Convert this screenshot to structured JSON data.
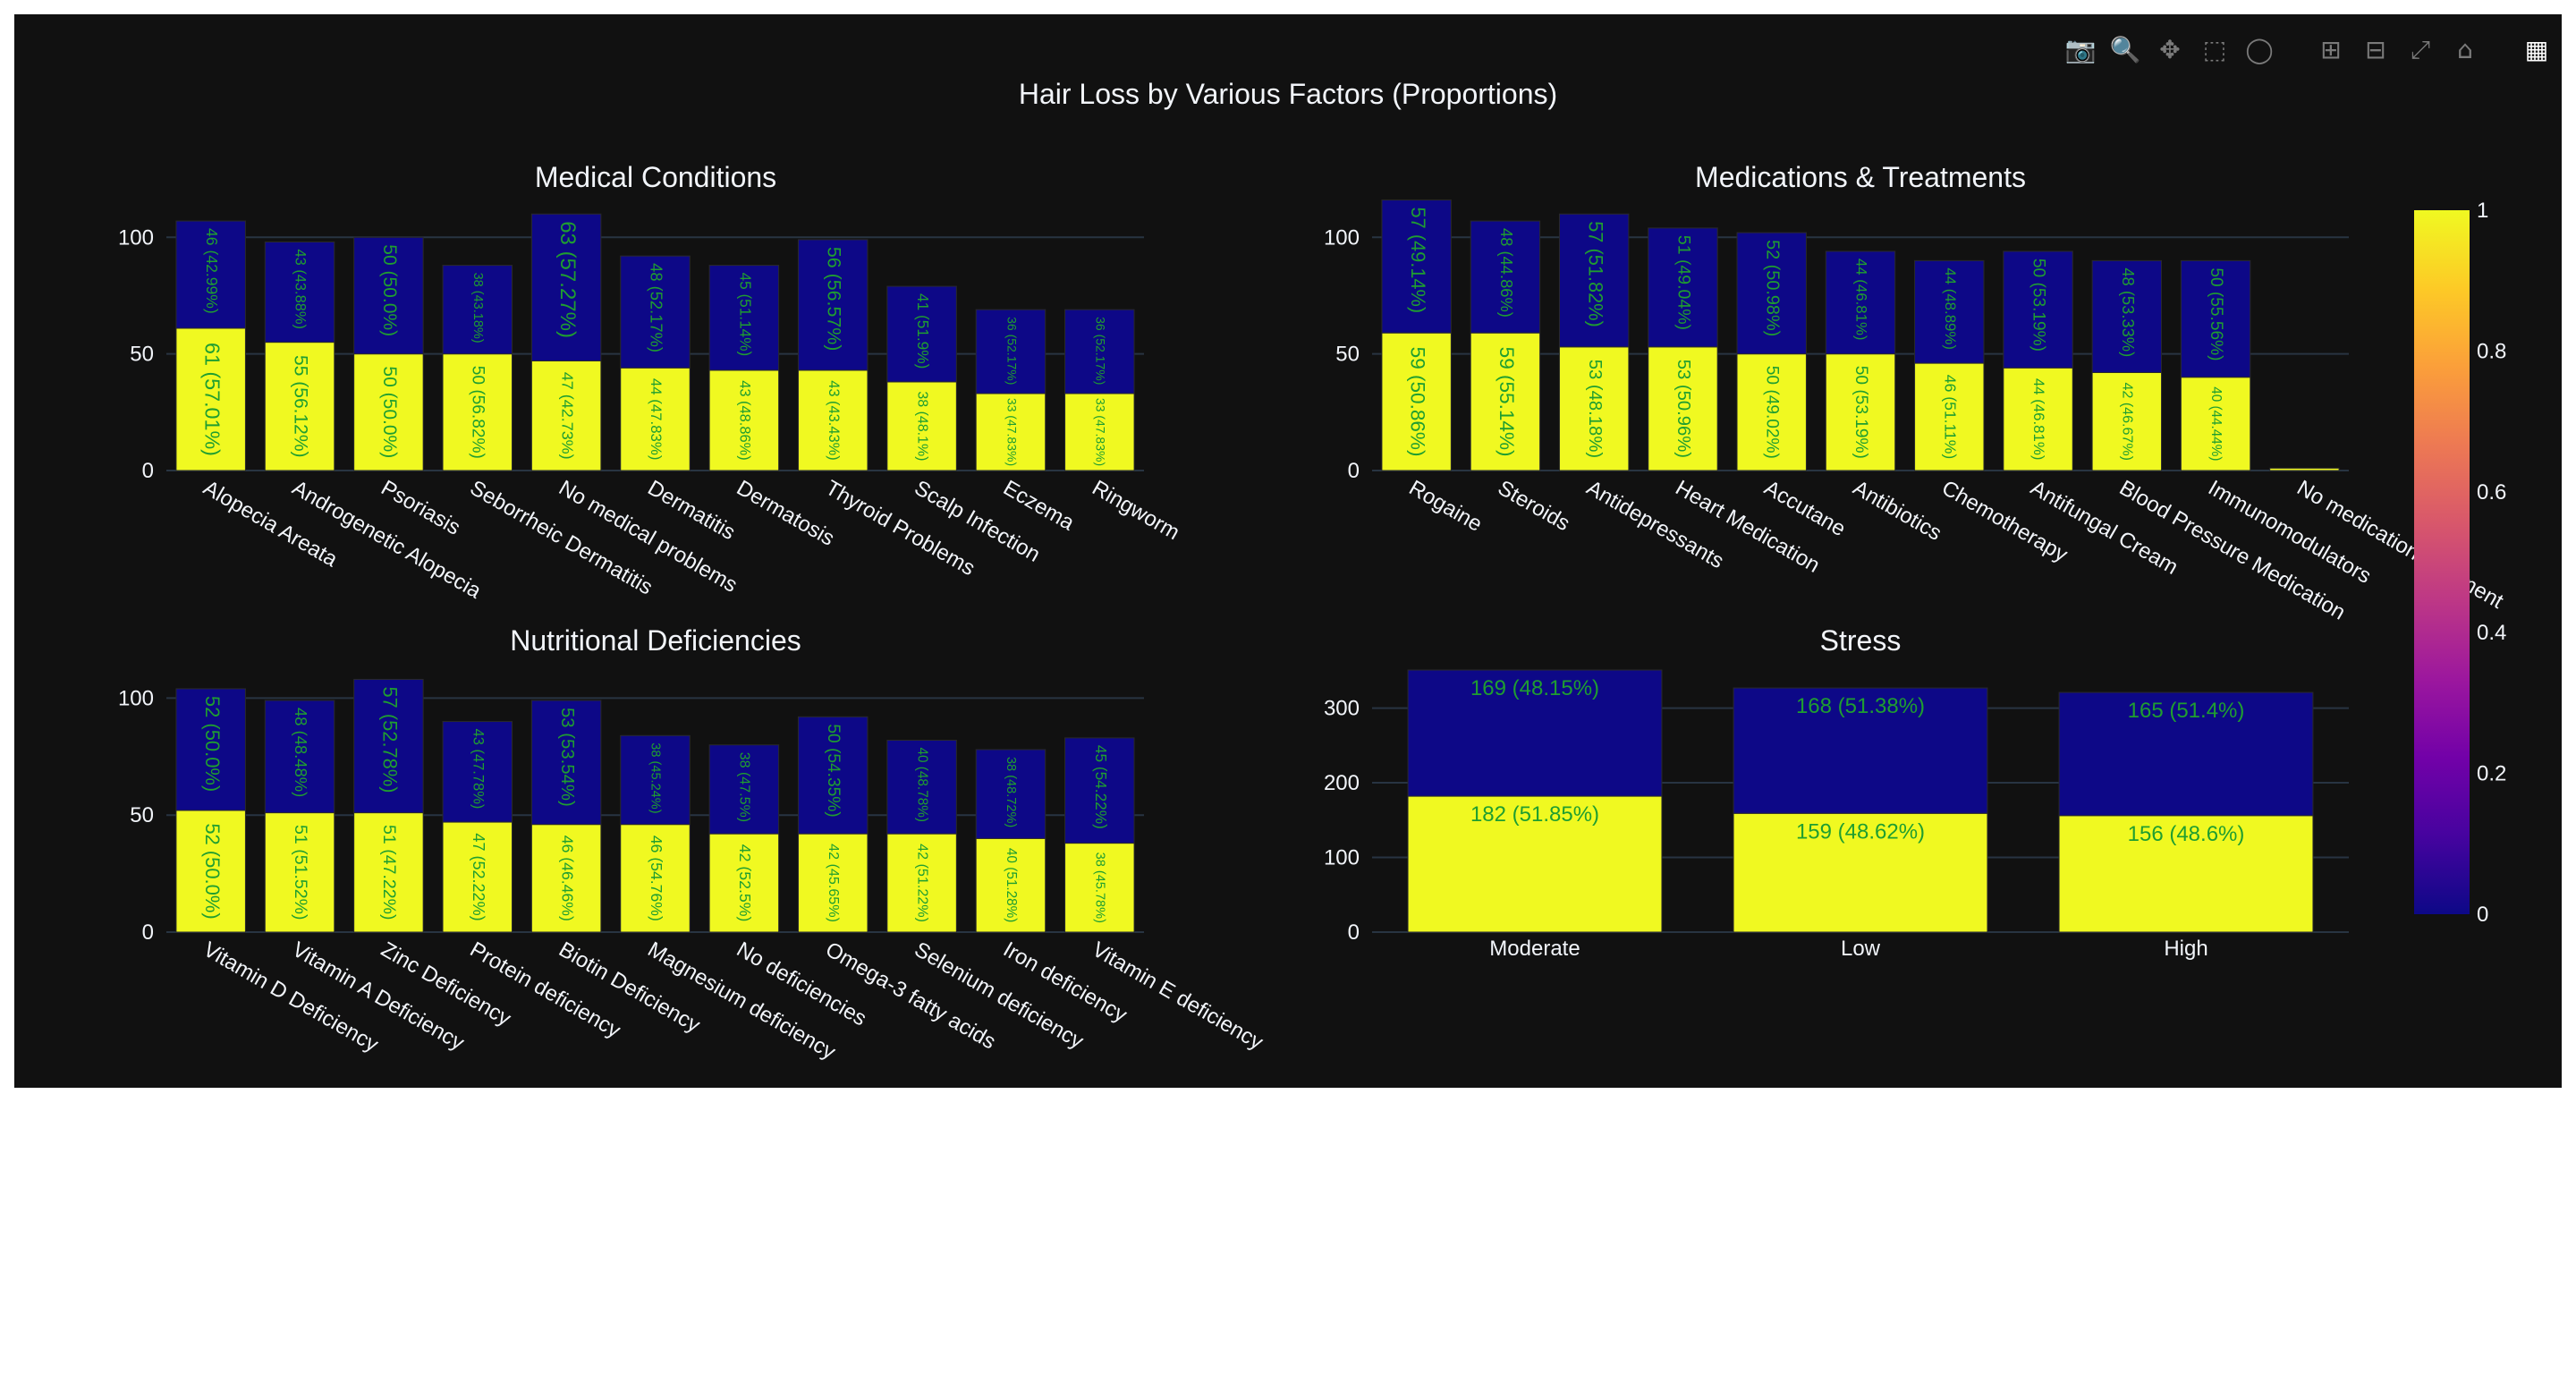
{
  "title": "Hair Loss by Various Factors (Proportions)",
  "modebar": [
    "camera-icon",
    "zoom-icon",
    "pan-icon",
    "box-select-icon",
    "lasso-select-icon",
    "zoom-in-icon",
    "zoom-out-icon",
    "autoscale-icon",
    "reset-axes-icon",
    "plotly-logo-icon"
  ],
  "colors": {
    "background": "#111111",
    "yes": "#f0f921",
    "no": "#0d0887",
    "text": "#f2f5fa",
    "label": "#1f9e30",
    "grid": "#283442"
  },
  "colorbar": {
    "ticks": [
      "0",
      "0.2",
      "0.4",
      "0.6",
      "0.8",
      "1"
    ],
    "scale": [
      "#0d0887",
      "#46039f",
      "#7201a8",
      "#9c179e",
      "#bd3786",
      "#d8576b",
      "#ed7953",
      "#fb9f3a",
      "#fdca26",
      "#f0f921"
    ]
  },
  "chart_data": [
    {
      "type": "bar",
      "title": "Medical Conditions",
      "ylim": [
        0,
        112
      ],
      "yticks": [
        "0",
        "50",
        "100"
      ],
      "categories": [
        "Alopecia Areata",
        "Androgenetic Alopecia",
        "Psoriasis",
        "Seborrheic Dermatitis",
        "No medical problems",
        "Dermatitis",
        "Dermatosis",
        "Thyroid Problems",
        "Scalp Infection",
        "Eczema",
        "Ringworm"
      ],
      "series": [
        {
          "values": [
            61,
            55,
            50,
            50,
            47,
            44,
            43,
            43,
            38,
            33,
            33
          ],
          "labels": [
            "61 (57.01%)",
            "55 (56.12%)",
            "50 (50.0%)",
            "50 (56.82%)",
            "47 (42.73%)",
            "44 (47.83%)",
            "43 (48.86%)",
            "43 (43.43%)",
            "38 (48.1%)",
            "33 (47.83%)",
            "33 (47.83%)"
          ]
        },
        {
          "values": [
            46,
            43,
            50,
            38,
            63,
            48,
            45,
            56,
            41,
            36,
            36
          ],
          "labels": [
            "46 (42.99%)",
            "43 (43.88%)",
            "50 (50.0%)",
            "38 (43.18%)",
            "63 (57.27%)",
            "48 (52.17%)",
            "45 (51.14%)",
            "56 (56.57%)",
            "41 (51.9%)",
            "36 (52.17%)",
            "36 (52.17%)"
          ]
        }
      ]
    },
    {
      "type": "bar",
      "title": "Medications & Treatments",
      "ylim": [
        0,
        112
      ],
      "yticks": [
        "0",
        "50",
        "100"
      ],
      "categories": [
        "Rogaine",
        "Steroids",
        "Antidepressants",
        "Heart Medication",
        "Accutane",
        "Antibiotics",
        "Chemotherapy",
        "Antifungal Cream",
        "Blood Pressure Medication",
        "Immunomodulators",
        "No medication/treatment"
      ],
      "series": [
        {
          "values": [
            59,
            59,
            53,
            53,
            50,
            50,
            46,
            44,
            42,
            40,
            1
          ],
          "labels": [
            "59 (50.86%)",
            "59 (55.14%)",
            "53 (48.18%)",
            "53 (50.96%)",
            "50 (49.02%)",
            "50 (53.19%)",
            "46 (51.11%)",
            "44 (46.81%)",
            "42 (46.67%)",
            "40 (44.44%)",
            ""
          ]
        },
        {
          "values": [
            57,
            48,
            57,
            51,
            52,
            44,
            44,
            50,
            48,
            50,
            0
          ],
          "labels": [
            "57 (49.14%)",
            "48 (44.86%)",
            "57 (51.82%)",
            "51 (49.04%)",
            "52 (50.98%)",
            "44 (46.81%)",
            "44 (48.89%)",
            "50 (53.19%)",
            "48 (53.33%)",
            "50 (55.56%)",
            ""
          ]
        }
      ]
    },
    {
      "type": "bar",
      "title": "Nutritional Deficiencies",
      "ylim": [
        0,
        112
      ],
      "yticks": [
        "0",
        "50",
        "100"
      ],
      "categories": [
        "Vitamin D Deficiency",
        "Vitamin A Deficiency",
        "Zinc Deficiency",
        "Protein deficiency",
        "Biotin Deficiency",
        "Magnesium deficiency",
        "No deficiencies",
        "Omega-3 fatty acids",
        "Selenium deficiency",
        "Iron deficiency",
        "Vitamin E deficiency"
      ],
      "series": [
        {
          "values": [
            52,
            51,
            51,
            47,
            46,
            46,
            42,
            42,
            42,
            40,
            38
          ],
          "labels": [
            "52 (50.0%)",
            "51 (51.52%)",
            "51 (47.22%)",
            "47 (52.22%)",
            "46 (46.46%)",
            "46 (54.76%)",
            "42 (52.5%)",
            "42 (45.65%)",
            "42 (51.22%)",
            "40 (51.28%)",
            "38 (45.78%)"
          ]
        },
        {
          "values": [
            52,
            48,
            57,
            43,
            53,
            38,
            38,
            50,
            40,
            38,
            45
          ],
          "labels": [
            "52 (50.0%)",
            "48 (48.48%)",
            "57 (52.78%)",
            "43 (47.78%)",
            "53 (53.54%)",
            "38 (45.24%)",
            "38 (47.5%)",
            "50 (54.35%)",
            "40 (48.78%)",
            "38 (48.72%)",
            "45 (54.22%)"
          ]
        }
      ]
    },
    {
      "type": "bar",
      "title": "Stress",
      "ylim": [
        0,
        351
      ],
      "yticks": [
        "0",
        "100",
        "200",
        "300"
      ],
      "categories": [
        "Moderate",
        "Low",
        "High"
      ],
      "series": [
        {
          "values": [
            182,
            159,
            156
          ],
          "labels": [
            "182 (51.85%)",
            "159 (48.62%)",
            "156 (48.6%)"
          ]
        },
        {
          "values": [
            169,
            168,
            165
          ],
          "labels": [
            "169 (48.15%)",
            "168 (51.38%)",
            "165 (51.4%)"
          ]
        }
      ]
    }
  ]
}
